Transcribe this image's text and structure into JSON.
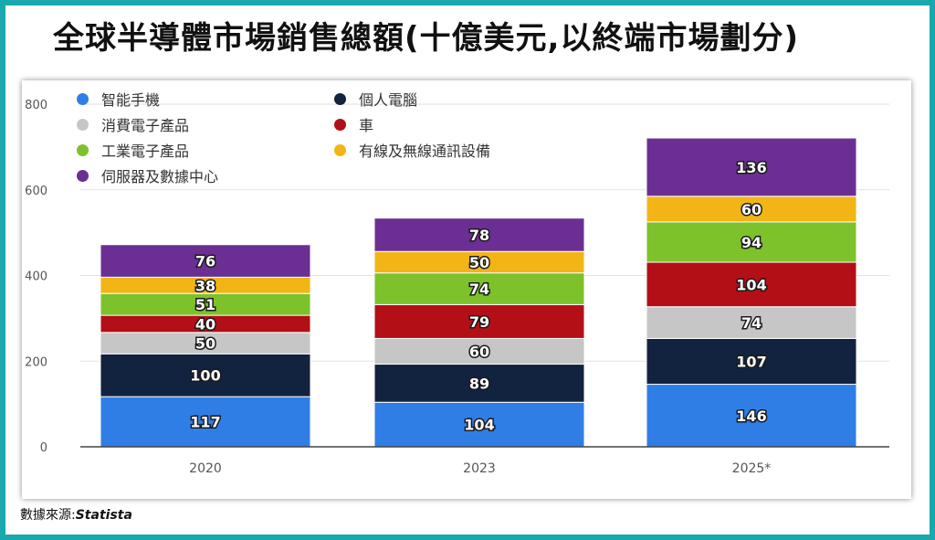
{
  "title": "全球半導體市場銷售總額(十億美元,以終端市場劃分)",
  "source": {
    "label": "數據來源:",
    "name": "Statista"
  },
  "chart_data": {
    "type": "bar",
    "stacked": true,
    "categories": [
      "2020",
      "2023",
      "2025*"
    ],
    "ylim": [
      0,
      800
    ],
    "yticks": [
      0,
      200,
      400,
      600,
      800
    ],
    "grid": true,
    "legend_position": "top-left",
    "series": [
      {
        "name": "智能手機",
        "color": "#2f7ee6",
        "values": [
          117,
          104,
          146
        ]
      },
      {
        "name": "個人電腦",
        "color": "#12233f",
        "values": [
          100,
          89,
          107
        ]
      },
      {
        "name": "消費電子產品",
        "color": "#c6c6c6",
        "values": [
          50,
          60,
          74
        ]
      },
      {
        "name": "車",
        "color": "#b30f17",
        "values": [
          40,
          79,
          104
        ]
      },
      {
        "name": "工業電子產品",
        "color": "#7dc12b",
        "values": [
          51,
          74,
          94
        ]
      },
      {
        "name": "有線及無線通訊設備",
        "color": "#f2b515",
        "values": [
          38,
          50,
          60
        ]
      },
      {
        "name": "伺服器及數據中心",
        "color": "#6b2f93",
        "values": [
          76,
          78,
          136
        ]
      }
    ]
  }
}
